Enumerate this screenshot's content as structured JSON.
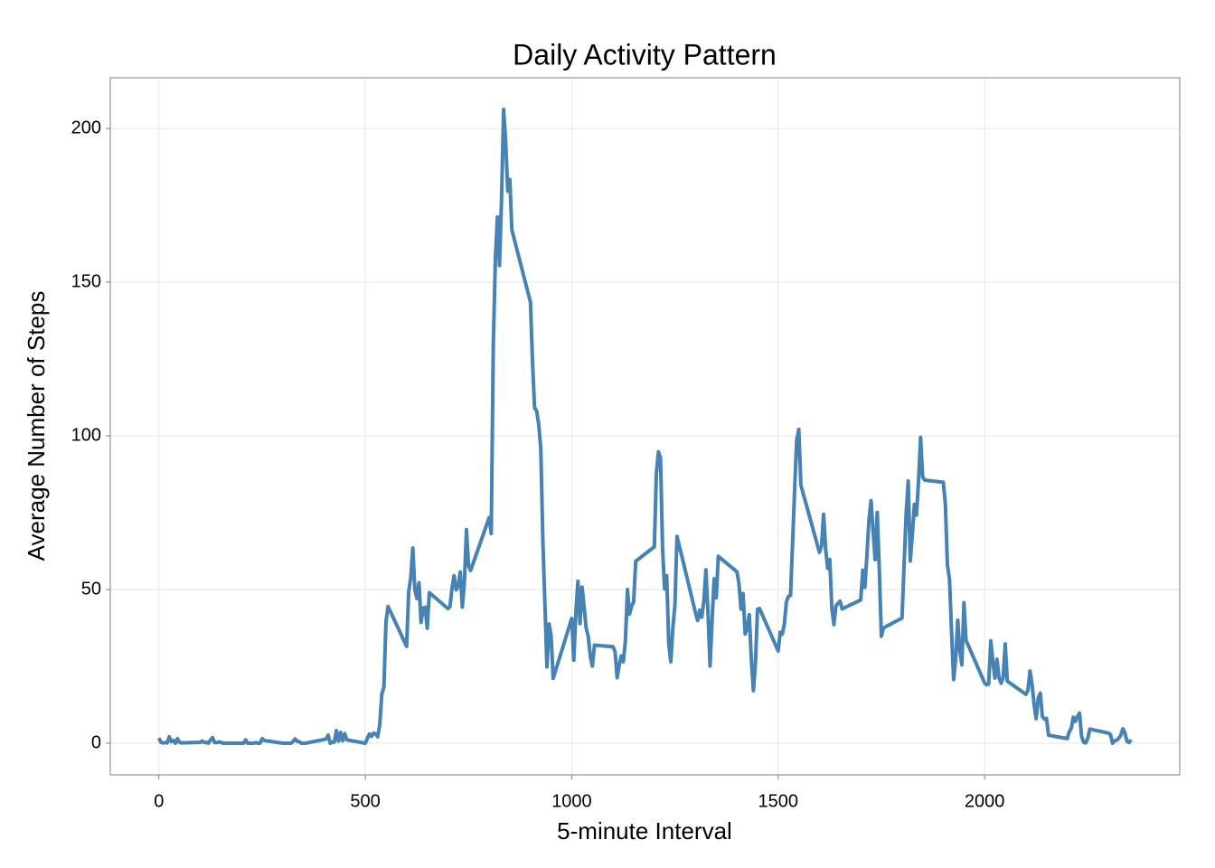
{
  "chart_data": {
    "type": "line",
    "title": "Daily Activity Pattern",
    "x_label": "5-minute Interval",
    "y_label": "Average Number of Steps",
    "xlim": [
      -117.75,
      2472.75
    ],
    "ylim": [
      -10.3,
      216.5
    ],
    "xticks": [
      0,
      500,
      1000,
      1500,
      2000
    ],
    "yticks": [
      0,
      50,
      100,
      150,
      200
    ],
    "grid": true,
    "x": [
      0,
      5,
      10,
      15,
      20,
      25,
      30,
      35,
      40,
      45,
      50,
      55,
      100,
      105,
      110,
      115,
      120,
      125,
      130,
      135,
      140,
      145,
      150,
      155,
      200,
      205,
      210,
      215,
      220,
      225,
      230,
      235,
      240,
      245,
      250,
      255,
      300,
      305,
      310,
      315,
      320,
      325,
      330,
      335,
      340,
      345,
      350,
      355,
      400,
      405,
      410,
      415,
      420,
      425,
      430,
      435,
      440,
      445,
      450,
      455,
      500,
      505,
      510,
      515,
      520,
      525,
      530,
      535,
      540,
      545,
      550,
      555,
      600,
      605,
      610,
      615,
      620,
      625,
      630,
      635,
      640,
      645,
      650,
      655,
      700,
      705,
      710,
      715,
      720,
      725,
      730,
      735,
      740,
      745,
      750,
      755,
      800,
      805,
      810,
      815,
      820,
      825,
      830,
      835,
      840,
      845,
      850,
      855,
      900,
      905,
      910,
      915,
      920,
      925,
      930,
      935,
      940,
      945,
      950,
      955,
      1000,
      1005,
      1010,
      1015,
      1020,
      1025,
      1030,
      1035,
      1040,
      1045,
      1050,
      1055,
      1100,
      1105,
      1110,
      1115,
      1120,
      1125,
      1130,
      1135,
      1140,
      1145,
      1150,
      1155,
      1200,
      1205,
      1210,
      1215,
      1220,
      1225,
      1230,
      1235,
      1240,
      1245,
      1250,
      1255,
      1300,
      1305,
      1310,
      1315,
      1320,
      1325,
      1330,
      1335,
      1340,
      1345,
      1350,
      1355,
      1400,
      1405,
      1410,
      1415,
      1420,
      1425,
      1430,
      1435,
      1440,
      1445,
      1450,
      1455,
      1500,
      1505,
      1510,
      1515,
      1520,
      1525,
      1530,
      1535,
      1540,
      1545,
      1550,
      1555,
      1600,
      1605,
      1610,
      1615,
      1620,
      1625,
      1630,
      1635,
      1640,
      1645,
      1650,
      1655,
      1700,
      1705,
      1710,
      1715,
      1720,
      1725,
      1730,
      1735,
      1740,
      1745,
      1750,
      1755,
      1800,
      1805,
      1810,
      1815,
      1820,
      1825,
      1830,
      1835,
      1840,
      1845,
      1850,
      1855,
      1900,
      1905,
      1910,
      1915,
      1920,
      1925,
      1930,
      1935,
      1940,
      1945,
      1950,
      1955,
      2000,
      2005,
      2010,
      2015,
      2020,
      2025,
      2030,
      2035,
      2040,
      2045,
      2050,
      2055,
      2100,
      2105,
      2110,
      2115,
      2120,
      2125,
      2130,
      2135,
      2140,
      2145,
      2150,
      2155,
      2200,
      2205,
      2210,
      2215,
      2220,
      2225,
      2230,
      2235,
      2240,
      2245,
      2250,
      2255,
      2300,
      2305,
      2310,
      2315,
      2320,
      2325,
      2330,
      2335,
      2340,
      2345,
      2350,
      2355
    ],
    "series": [
      {
        "color": "#4682b4",
        "values": [
          1.7,
          0.3,
          0.1,
          0.2,
          0.1,
          2.1,
          0.5,
          0.9,
          0,
          1.5,
          0.3,
          0.1,
          0.3,
          0.7,
          0.2,
          0.3,
          0,
          1.1,
          1.8,
          0.2,
          0.2,
          0.4,
          0.3,
          0,
          0,
          0,
          1.1,
          0,
          0,
          0,
          0,
          0.2,
          0,
          0,
          1.5,
          0.9,
          0,
          0,
          0,
          0,
          0,
          0.6,
          1.4,
          0.6,
          0.5,
          0,
          0,
          0,
          1.2,
          1.4,
          2.6,
          0,
          0.3,
          0.4,
          4.1,
          0.7,
          3.5,
          0.8,
          3.1,
          1.1,
          0,
          1.6,
          3.0,
          2.2,
          3.3,
          3.0,
          2.1,
          6.1,
          16.0,
          18.3,
          39.5,
          44.5,
          31.5,
          49.3,
          53.8,
          63.5,
          50.0,
          47.1,
          52.2,
          39.3,
          44.0,
          44.2,
          37.4,
          49.0,
          43.8,
          44.4,
          50.5,
          54.5,
          49.9,
          51.0,
          55.7,
          44.3,
          52.3,
          69.5,
          57.8,
          56.2,
          73.4,
          68.2,
          129.4,
          157.5,
          171.2,
          155.4,
          177.3,
          206.2,
          195.9,
          179.6,
          183.4,
          167.0,
          143.5,
          124.0,
          109.1,
          108.1,
          103.7,
          96.0,
          66.2,
          45.2,
          24.8,
          38.8,
          35.0,
          21.1,
          40.6,
          27.0,
          42.4,
          52.7,
          38.9,
          50.8,
          44.3,
          37.4,
          34.7,
          28.3,
          25.1,
          31.9,
          31.4,
          29.7,
          21.3,
          25.5,
          28.4,
          26.5,
          33.4,
          50.0,
          42.0,
          44.6,
          46.0,
          59.2,
          63.9,
          87.7,
          94.8,
          92.8,
          63.4,
          50.2,
          54.5,
          32.4,
          26.5,
          37.7,
          45.1,
          67.3,
          42.3,
          39.9,
          43.3,
          41.0,
          46.2,
          56.4,
          42.8,
          25.1,
          40.0,
          53.5,
          47.3,
          60.8,
          55.8,
          52.0,
          43.6,
          48.7,
          35.5,
          37.5,
          41.8,
          27.5,
          17.1,
          26.1,
          43.6,
          43.8,
          30.0,
          36.1,
          35.5,
          38.8,
          46.0,
          47.8,
          48.1,
          65.3,
          82.9,
          98.7,
          102.1,
          84.0,
          62.1,
          64.1,
          74.5,
          63.2,
          56.9,
          59.8,
          43.9,
          38.6,
          44.7,
          45.5,
          46.2,
          43.7,
          46.6,
          56.3,
          50.7,
          61.2,
          72.7,
          78.9,
          68.9,
          59.7,
          75.1,
          56.5,
          34.8,
          37.5,
          40.7,
          58.0,
          74.7,
          85.3,
          59.3,
          67.8,
          77.7,
          74.2,
          85.3,
          99.5,
          86.6,
          85.6,
          84.9,
          77.8,
          58.0,
          53.4,
          36.3,
          20.7,
          27.4,
          40.0,
          30.2,
          25.5,
          45.7,
          33.5,
          19.6,
          19.0,
          19.3,
          33.3,
          26.8,
          21.2,
          27.3,
          21.3,
          19.5,
          21.3,
          32.3,
          20.2,
          15.9,
          17.2,
          23.5,
          19.2,
          12.5,
          8.0,
          14.7,
          16.3,
          8.7,
          7.8,
          8.1,
          2.6,
          1.5,
          3.7,
          4.8,
          8.5,
          7.1,
          8.7,
          9.8,
          2.2,
          0.3,
          0.1,
          1.6,
          4.6,
          3.3,
          2.8,
          0,
          0.8,
          1.0,
          1.6,
          2.6,
          4.7,
          3.3,
          0.6,
          0.2,
          1.1
        ]
      }
    ]
  }
}
